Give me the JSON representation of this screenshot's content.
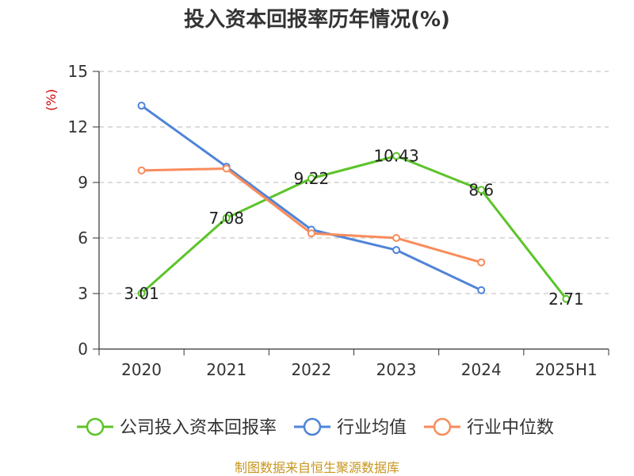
{
  "chart_data": {
    "type": "line",
    "title": "投入资本回报率历年情况(%)",
    "ylabel": "(%)",
    "categories": [
      "2020",
      "2021",
      "2022",
      "2023",
      "2024",
      "2025H1"
    ],
    "ylim": [
      0,
      15
    ],
    "yticks": [
      0,
      3,
      6,
      9,
      12,
      15
    ],
    "grid": true,
    "legend_position": "bottom",
    "series": [
      {
        "name": "公司投入资本回报率",
        "color": "#5cc42a",
        "show_labels": true,
        "values": [
          3.01,
          7.08,
          9.22,
          10.43,
          8.6,
          2.71
        ],
        "labels": [
          "3.01",
          "7.08",
          "9.22",
          "10.43",
          "8.6",
          "2.71"
        ]
      },
      {
        "name": "行业均值",
        "color": "#4f84d8",
        "show_labels": false,
        "values": [
          13.15,
          9.85,
          6.45,
          5.35,
          3.18,
          null
        ]
      },
      {
        "name": "行业中位数",
        "color": "#f88c5b",
        "show_labels": false,
        "values": [
          9.65,
          9.75,
          6.25,
          6.0,
          4.68,
          null
        ]
      }
    ]
  },
  "source": "制图数据来自恒生聚源数据库"
}
